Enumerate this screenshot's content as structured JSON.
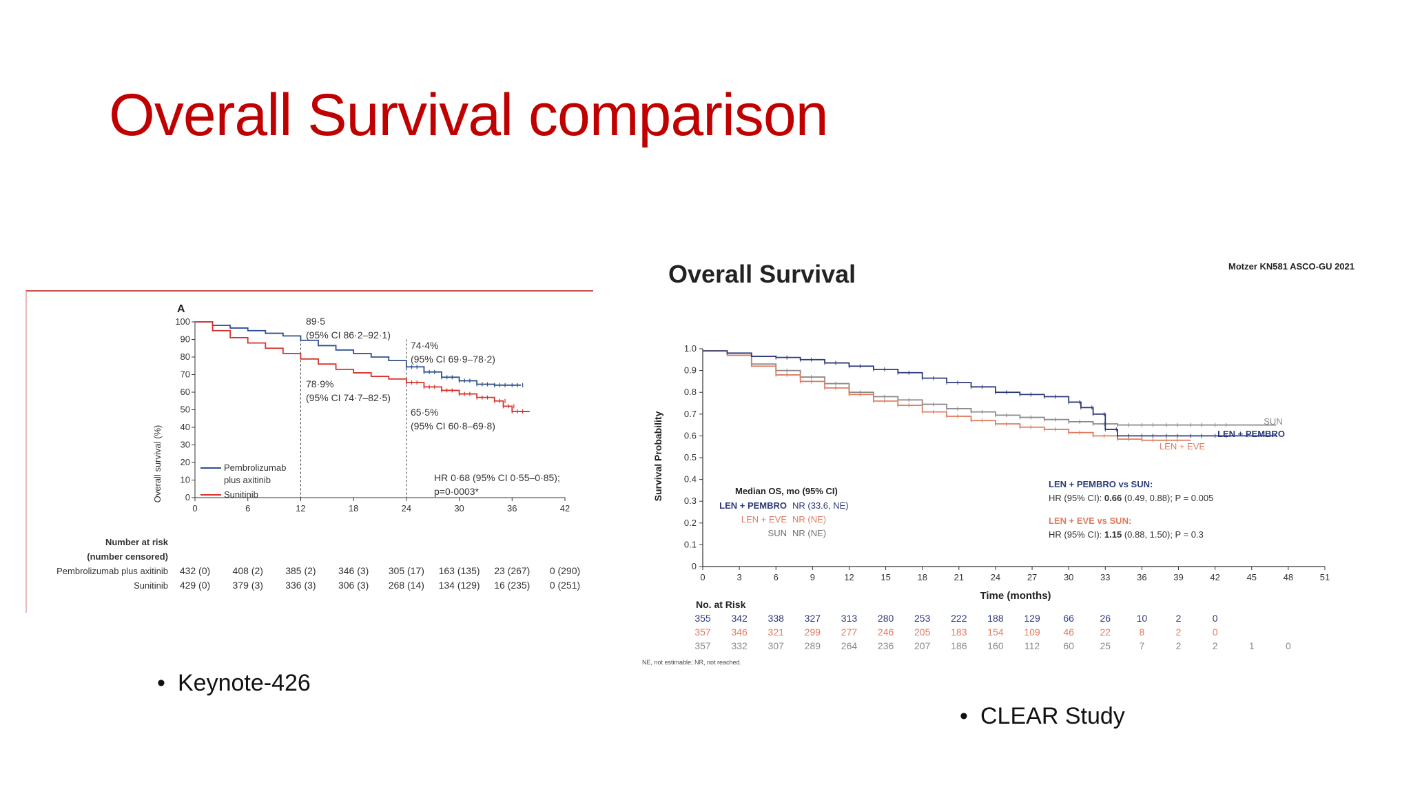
{
  "slide": {
    "title": "Overall Survival comparison",
    "bullet_left": "Keynote-426",
    "bullet_right": "CLEAR Study",
    "bullet_symbol": "•"
  },
  "chart_data": [
    {
      "type": "line",
      "panel": "A",
      "xlabel": "",
      "ylabel": "Overall survival (%)",
      "xticks": [
        0,
        6,
        12,
        18,
        24,
        30,
        36,
        42
      ],
      "yticks": [
        0,
        10,
        20,
        30,
        40,
        50,
        60,
        70,
        80,
        90,
        100
      ],
      "xlim": [
        0,
        42
      ],
      "ylim": [
        0,
        100
      ],
      "series": [
        {
          "name": "Pembrolizumab plus axitinib",
          "color": "#2e4f8f",
          "x": [
            0,
            2,
            4,
            6,
            8,
            10,
            12,
            14,
            16,
            18,
            20,
            22,
            24,
            26,
            28,
            30,
            32,
            34,
            36,
            37
          ],
          "y": [
            100,
            98,
            96.5,
            95,
            93.5,
            92,
            89.5,
            86.5,
            84,
            82,
            80,
            78,
            74.4,
            71.5,
            68.5,
            66.5,
            64.5,
            64,
            64,
            64
          ]
        },
        {
          "name": "Sunitinib",
          "color": "#d9312b",
          "x": [
            0,
            2,
            4,
            6,
            8,
            10,
            12,
            14,
            16,
            18,
            20,
            22,
            24,
            26,
            28,
            30,
            32,
            34,
            35,
            36,
            38
          ],
          "y": [
            100,
            95,
            91,
            88,
            85,
            82,
            78.9,
            76,
            73,
            71,
            69,
            67.5,
            65.5,
            63,
            61,
            59,
            57,
            55,
            52,
            49,
            49
          ]
        }
      ],
      "annotations": [
        {
          "label": "89·5",
          "sub": "(95% CI 86·2–92·1)"
        },
        {
          "label": "74·4%",
          "sub": "(95% CI 69·9–78·2)"
        },
        {
          "label": "78·9%",
          "sub": "(95% CI 74·7–82·5)"
        },
        {
          "label": "65·5%",
          "sub": "(95% CI 60·8–69·8)"
        }
      ],
      "hr_line1": "HR 0·68 (95% CI 0·55–0·85);",
      "hr_line2": "p=0·0003*",
      "legend": [
        "Pembrolizumab",
        "plus axitinib",
        "Sunitinib"
      ],
      "risk_title_1": "Number at risk",
      "risk_title_2": "(number censored)",
      "risk_rows": [
        {
          "label": "Pembrolizumab plus axitinib",
          "values": [
            "432 (0)",
            "408 (2)",
            "385 (2)",
            "346 (3)",
            "305 (17)",
            "163 (135)",
            "23 (267)",
            "0 (290)"
          ]
        },
        {
          "label": "Sunitinib",
          "values": [
            "429 (0)",
            "379 (3)",
            "336 (3)",
            "306 (3)",
            "268 (14)",
            "134 (129)",
            "16 (235)",
            "0 (251)"
          ]
        }
      ]
    },
    {
      "type": "line",
      "title": "Overall Survival",
      "source": "Motzer KN581 ASCO-GU 2021",
      "xlabel": "Time (months)",
      "ylabel": "Survival Probability",
      "xticks": [
        0,
        3,
        6,
        9,
        12,
        15,
        18,
        21,
        24,
        27,
        30,
        33,
        36,
        39,
        42,
        45,
        48,
        51
      ],
      "yticks": [
        "0",
        "0.1",
        "0.2",
        "0.3",
        "0.4",
        "0.5",
        "0.6",
        "0.7",
        "0.8",
        "0.9",
        "1.0"
      ],
      "xlim": [
        0,
        51
      ],
      "ylim": [
        0,
        1
      ],
      "series": [
        {
          "name": "LEN + PEMBRO",
          "color": "#2c3a7a",
          "x": [
            0,
            2,
            4,
            6,
            8,
            10,
            12,
            14,
            16,
            18,
            20,
            22,
            24,
            26,
            28,
            30,
            31,
            32,
            33,
            34,
            36,
            38,
            40,
            42,
            47
          ],
          "y": [
            0.99,
            0.98,
            0.965,
            0.96,
            0.95,
            0.935,
            0.92,
            0.905,
            0.89,
            0.865,
            0.845,
            0.825,
            0.8,
            0.79,
            0.78,
            0.755,
            0.73,
            0.7,
            0.63,
            0.6,
            0.6,
            0.6,
            0.6,
            0.6,
            0.6
          ]
        },
        {
          "name": "LEN + EVE",
          "color": "#e07a5f",
          "x": [
            0,
            2,
            4,
            6,
            8,
            10,
            12,
            14,
            16,
            18,
            20,
            22,
            24,
            26,
            28,
            30,
            32,
            34,
            36,
            38,
            40
          ],
          "y": [
            0.99,
            0.97,
            0.92,
            0.88,
            0.85,
            0.82,
            0.79,
            0.76,
            0.74,
            0.71,
            0.69,
            0.67,
            0.655,
            0.64,
            0.63,
            0.615,
            0.6,
            0.585,
            0.58,
            0.58,
            0.58
          ]
        },
        {
          "name": "SUN",
          "color": "#8a8a8a",
          "x": [
            0,
            2,
            4,
            6,
            8,
            10,
            12,
            14,
            16,
            18,
            20,
            22,
            24,
            26,
            28,
            30,
            32,
            34,
            36,
            38,
            40,
            42,
            47
          ],
          "y": [
            0.99,
            0.97,
            0.93,
            0.9,
            0.87,
            0.84,
            0.8,
            0.78,
            0.765,
            0.745,
            0.725,
            0.71,
            0.695,
            0.685,
            0.675,
            0.665,
            0.655,
            0.65,
            0.65,
            0.65,
            0.65,
            0.65,
            0.65
          ]
        }
      ],
      "label_sun": "SUN",
      "label_pembro": "LEN + PEMBRO",
      "label_eve": "LEN + EVE",
      "median_title": "Median OS, mo (95% CI)",
      "median_rows": [
        {
          "arm": "LEN + PEMBRO",
          "value": "NR (33.6, NE)"
        },
        {
          "arm": "LEN + EVE",
          "value": "NR (NE)"
        },
        {
          "arm": "SUN",
          "value": "NR (NE)"
        }
      ],
      "hr1_title": "LEN + PEMBRO vs SUN:",
      "hr1_pre": "HR (95% CI): ",
      "hr1_bold": "0.66",
      "hr1_post": " (0.49, 0.88); P = 0.005",
      "hr2_title": "LEN + EVE vs SUN:",
      "hr2_pre": "HR (95% CI): ",
      "hr2_bold": "1.15",
      "hr2_post": " (0.88, 1.50); P = 0.3",
      "risk_title": "No. at Risk",
      "risk_rows": [
        {
          "arm": "LEN + PEMBRO",
          "color": "#2c3a7a",
          "values": [
            "355",
            "342",
            "338",
            "327",
            "313",
            "280",
            "253",
            "222",
            "188",
            "129",
            "66",
            "26",
            "10",
            "2",
            "0"
          ]
        },
        {
          "arm": "LEN + EVE",
          "color": "#e07a5f",
          "values": [
            "357",
            "346",
            "321",
            "299",
            "277",
            "246",
            "205",
            "183",
            "154",
            "109",
            "46",
            "22",
            "8",
            "2",
            "0"
          ]
        },
        {
          "arm": "SUN",
          "color": "#8a8a8a",
          "values": [
            "357",
            "332",
            "307",
            "289",
            "264",
            "236",
            "207",
            "186",
            "160",
            "112",
            "60",
            "25",
            "7",
            "2",
            "2",
            "1",
            "0"
          ]
        }
      ],
      "footnote": "NE, not estimable; NR, not reached."
    }
  ]
}
